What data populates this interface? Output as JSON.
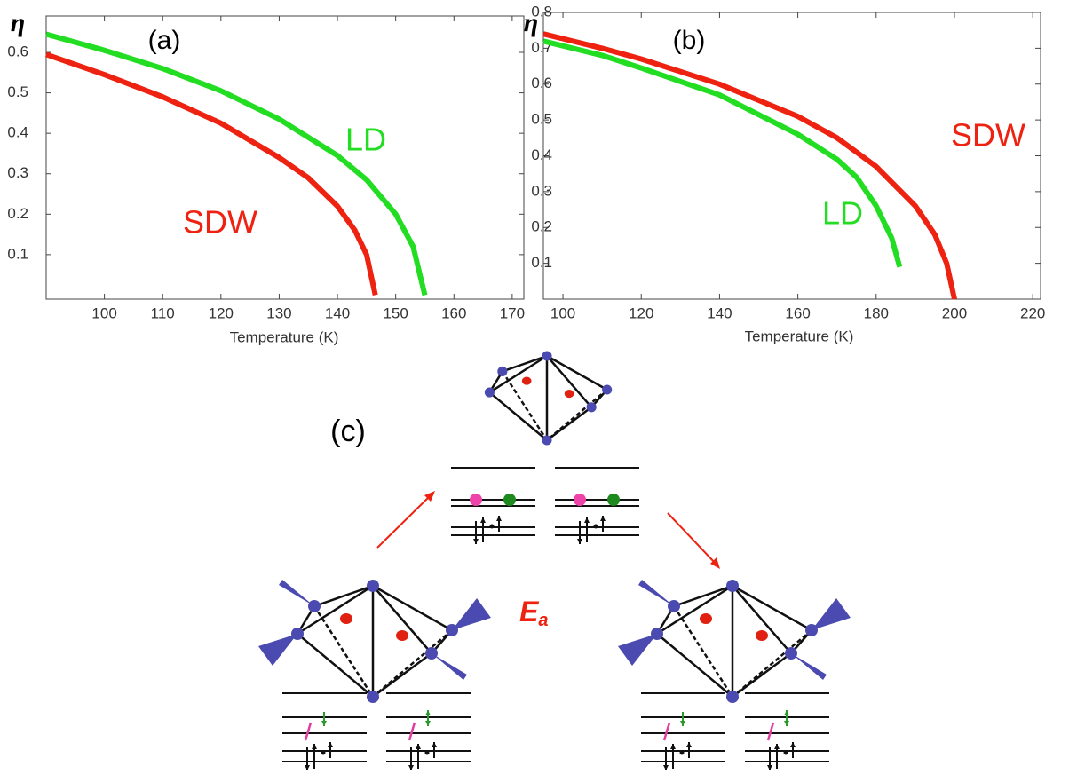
{
  "chart_data": [
    {
      "type": "line",
      "y_label": "η",
      "x_label": "Temperature (K)",
      "xlim": [
        90,
        172
      ],
      "xticks": [
        100,
        110,
        120,
        130,
        140,
        150,
        160,
        170
      ],
      "ylim": [
        -0.01,
        0.69
      ],
      "yticks": [
        0.1,
        0.2,
        0.3,
        0.4,
        0.5,
        0.6
      ],
      "series": [
        {
          "name": "LD",
          "color": "#22dd22",
          "x": [
            90,
            100,
            110,
            120,
            130,
            140,
            145,
            150,
            153,
            155
          ],
          "values": [
            0.645,
            0.605,
            0.56,
            0.505,
            0.435,
            0.345,
            0.285,
            0.2,
            0.12,
            0.0
          ]
        },
        {
          "name": "SDW",
          "color": "#ee2211",
          "x": [
            90,
            100,
            110,
            120,
            130,
            135,
            140,
            143,
            145,
            146.5
          ],
          "values": [
            0.595,
            0.545,
            0.49,
            0.425,
            0.34,
            0.29,
            0.22,
            0.16,
            0.1,
            0.0
          ]
        }
      ],
      "annotations": [
        {
          "text": "(a)",
          "color": "#000000"
        },
        {
          "text": "LD",
          "color": "#22dd22"
        },
        {
          "text": "SDW",
          "color": "#ee2211"
        }
      ]
    },
    {
      "type": "line",
      "y_label": "η",
      "x_label": "Temperature (K)",
      "xlim": [
        95,
        222
      ],
      "xticks": [
        100,
        120,
        140,
        160,
        180,
        200,
        220
      ],
      "ylim": [
        0,
        0.8
      ],
      "yticks": [
        0.1,
        0.2,
        0.3,
        0.4,
        0.5,
        0.6,
        0.7,
        0.8
      ],
      "series": [
        {
          "name": "SDW",
          "color": "#ee2211",
          "x": [
            95,
            110,
            120,
            140,
            160,
            170,
            180,
            190,
            195,
            198,
            200
          ],
          "values": [
            0.74,
            0.7,
            0.67,
            0.6,
            0.51,
            0.45,
            0.37,
            0.26,
            0.18,
            0.1,
            0.0
          ]
        },
        {
          "name": "LD",
          "color": "#22dd22",
          "x": [
            95,
            110,
            120,
            140,
            160,
            170,
            175,
            180,
            184,
            186
          ],
          "values": [
            0.72,
            0.68,
            0.645,
            0.57,
            0.46,
            0.39,
            0.34,
            0.26,
            0.17,
            0.09
          ]
        }
      ],
      "annotations": [
        {
          "text": "(b)",
          "color": "#000000"
        },
        {
          "text": "SDW",
          "color": "#ee2211"
        },
        {
          "text": "LD",
          "color": "#22dd22"
        }
      ]
    }
  ],
  "diagram": {
    "label": "(c)",
    "energy_symbol": "E",
    "energy_subscript": "a"
  }
}
